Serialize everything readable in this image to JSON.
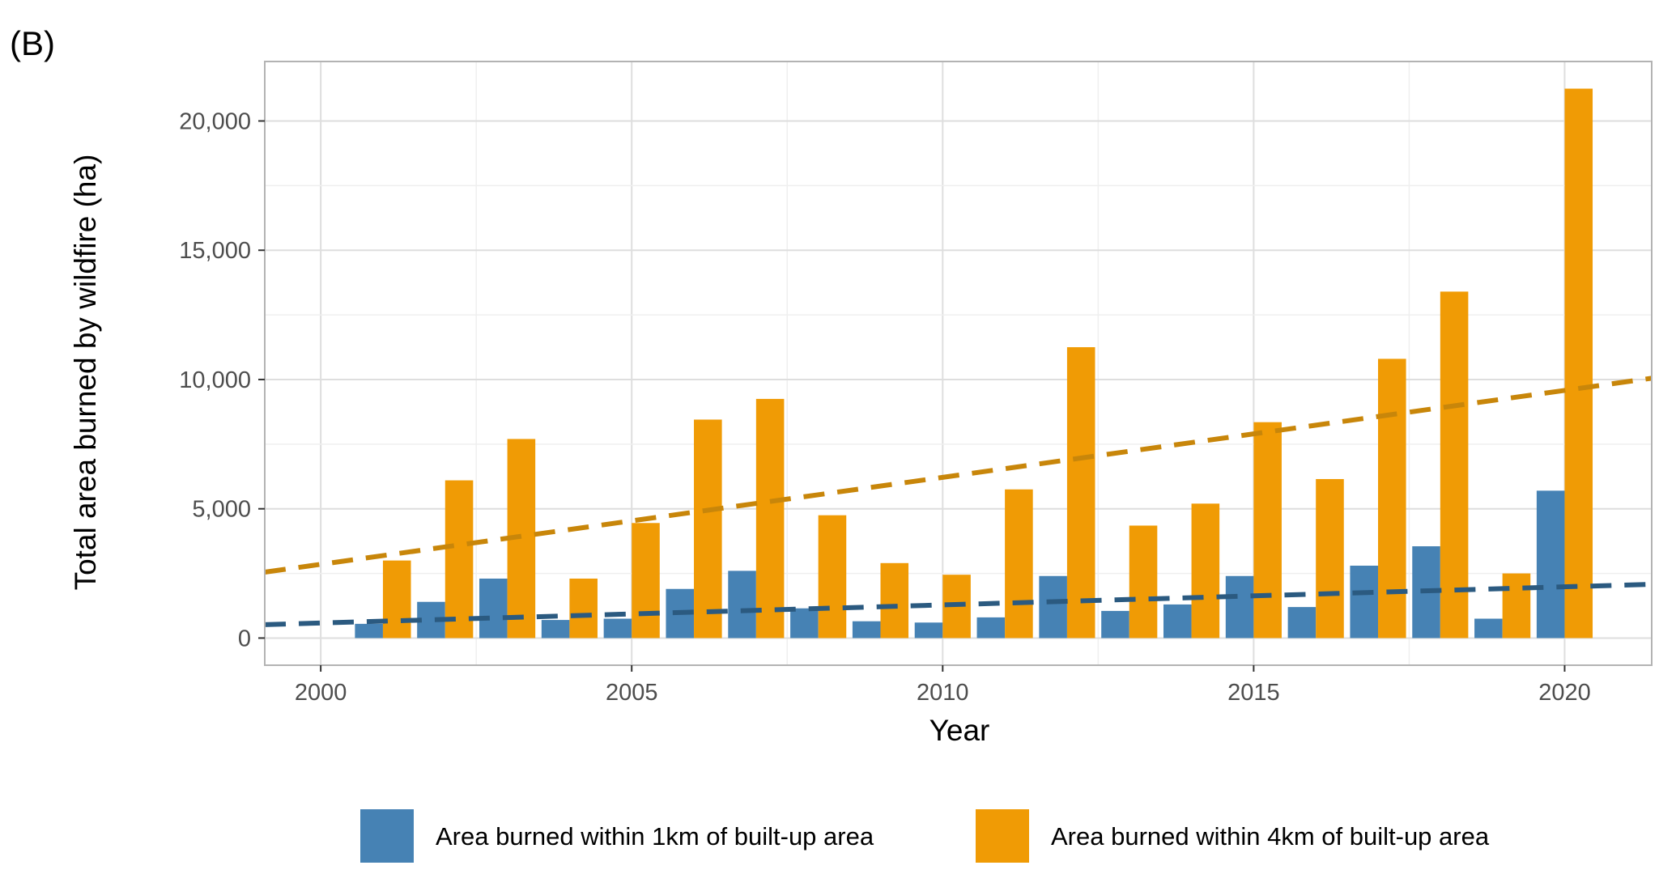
{
  "chart_data": {
    "type": "bar",
    "panel_label": "(B)",
    "xlabel": "Year",
    "ylabel": "Total area burned by wildfire (ha)",
    "xlim": [
      1999.1,
      2021.4
    ],
    "ylim": [
      -1050,
      22300
    ],
    "x_ticks": [
      2000,
      2005,
      2010,
      2015,
      2020
    ],
    "x_tick_labels": [
      "2000",
      "2005",
      "2010",
      "2015",
      "2020"
    ],
    "y_ticks": [
      0,
      5000,
      10000,
      15000,
      20000
    ],
    "y_tick_labels": [
      "0",
      "5,000",
      "10,000",
      "15,000",
      "20,000"
    ],
    "grid": true,
    "legend_position": "bottom",
    "categories": [
      2001,
      2002,
      2003,
      2004,
      2005,
      2006,
      2007,
      2008,
      2009,
      2010,
      2011,
      2012,
      2013,
      2014,
      2015,
      2016,
      2017,
      2018,
      2019,
      2020
    ],
    "series": [
      {
        "name": "Area burned within 1km of built-up area",
        "color": "#4682b4",
        "values": [
          550,
          1400,
          2300,
          700,
          750,
          1900,
          2600,
          1150,
          650,
          600,
          800,
          2400,
          1050,
          1300,
          2400,
          1200,
          2800,
          3550,
          750,
          5700
        ]
      },
      {
        "name": "Area burned within 4km of built-up area",
        "color": "#f09b05",
        "values": [
          3000,
          6100,
          7700,
          2300,
          4450,
          8450,
          9250,
          4750,
          2900,
          2450,
          5750,
          11250,
          4350,
          5200,
          8350,
          6150,
          10800,
          13400,
          2500,
          21250
        ]
      }
    ],
    "trend_lines": [
      {
        "series": "Area burned within 1km of built-up area",
        "style": "dashed",
        "color": "#2b5a80",
        "x": [
          1999.1,
          2021.4
        ],
        "y": [
          520,
          2080
        ]
      },
      {
        "series": "Area burned within 4km of built-up area",
        "style": "dashed",
        "color": "#c8860a",
        "x": [
          1999.1,
          2021.4
        ],
        "y": [
          2550,
          10050
        ]
      }
    ]
  }
}
